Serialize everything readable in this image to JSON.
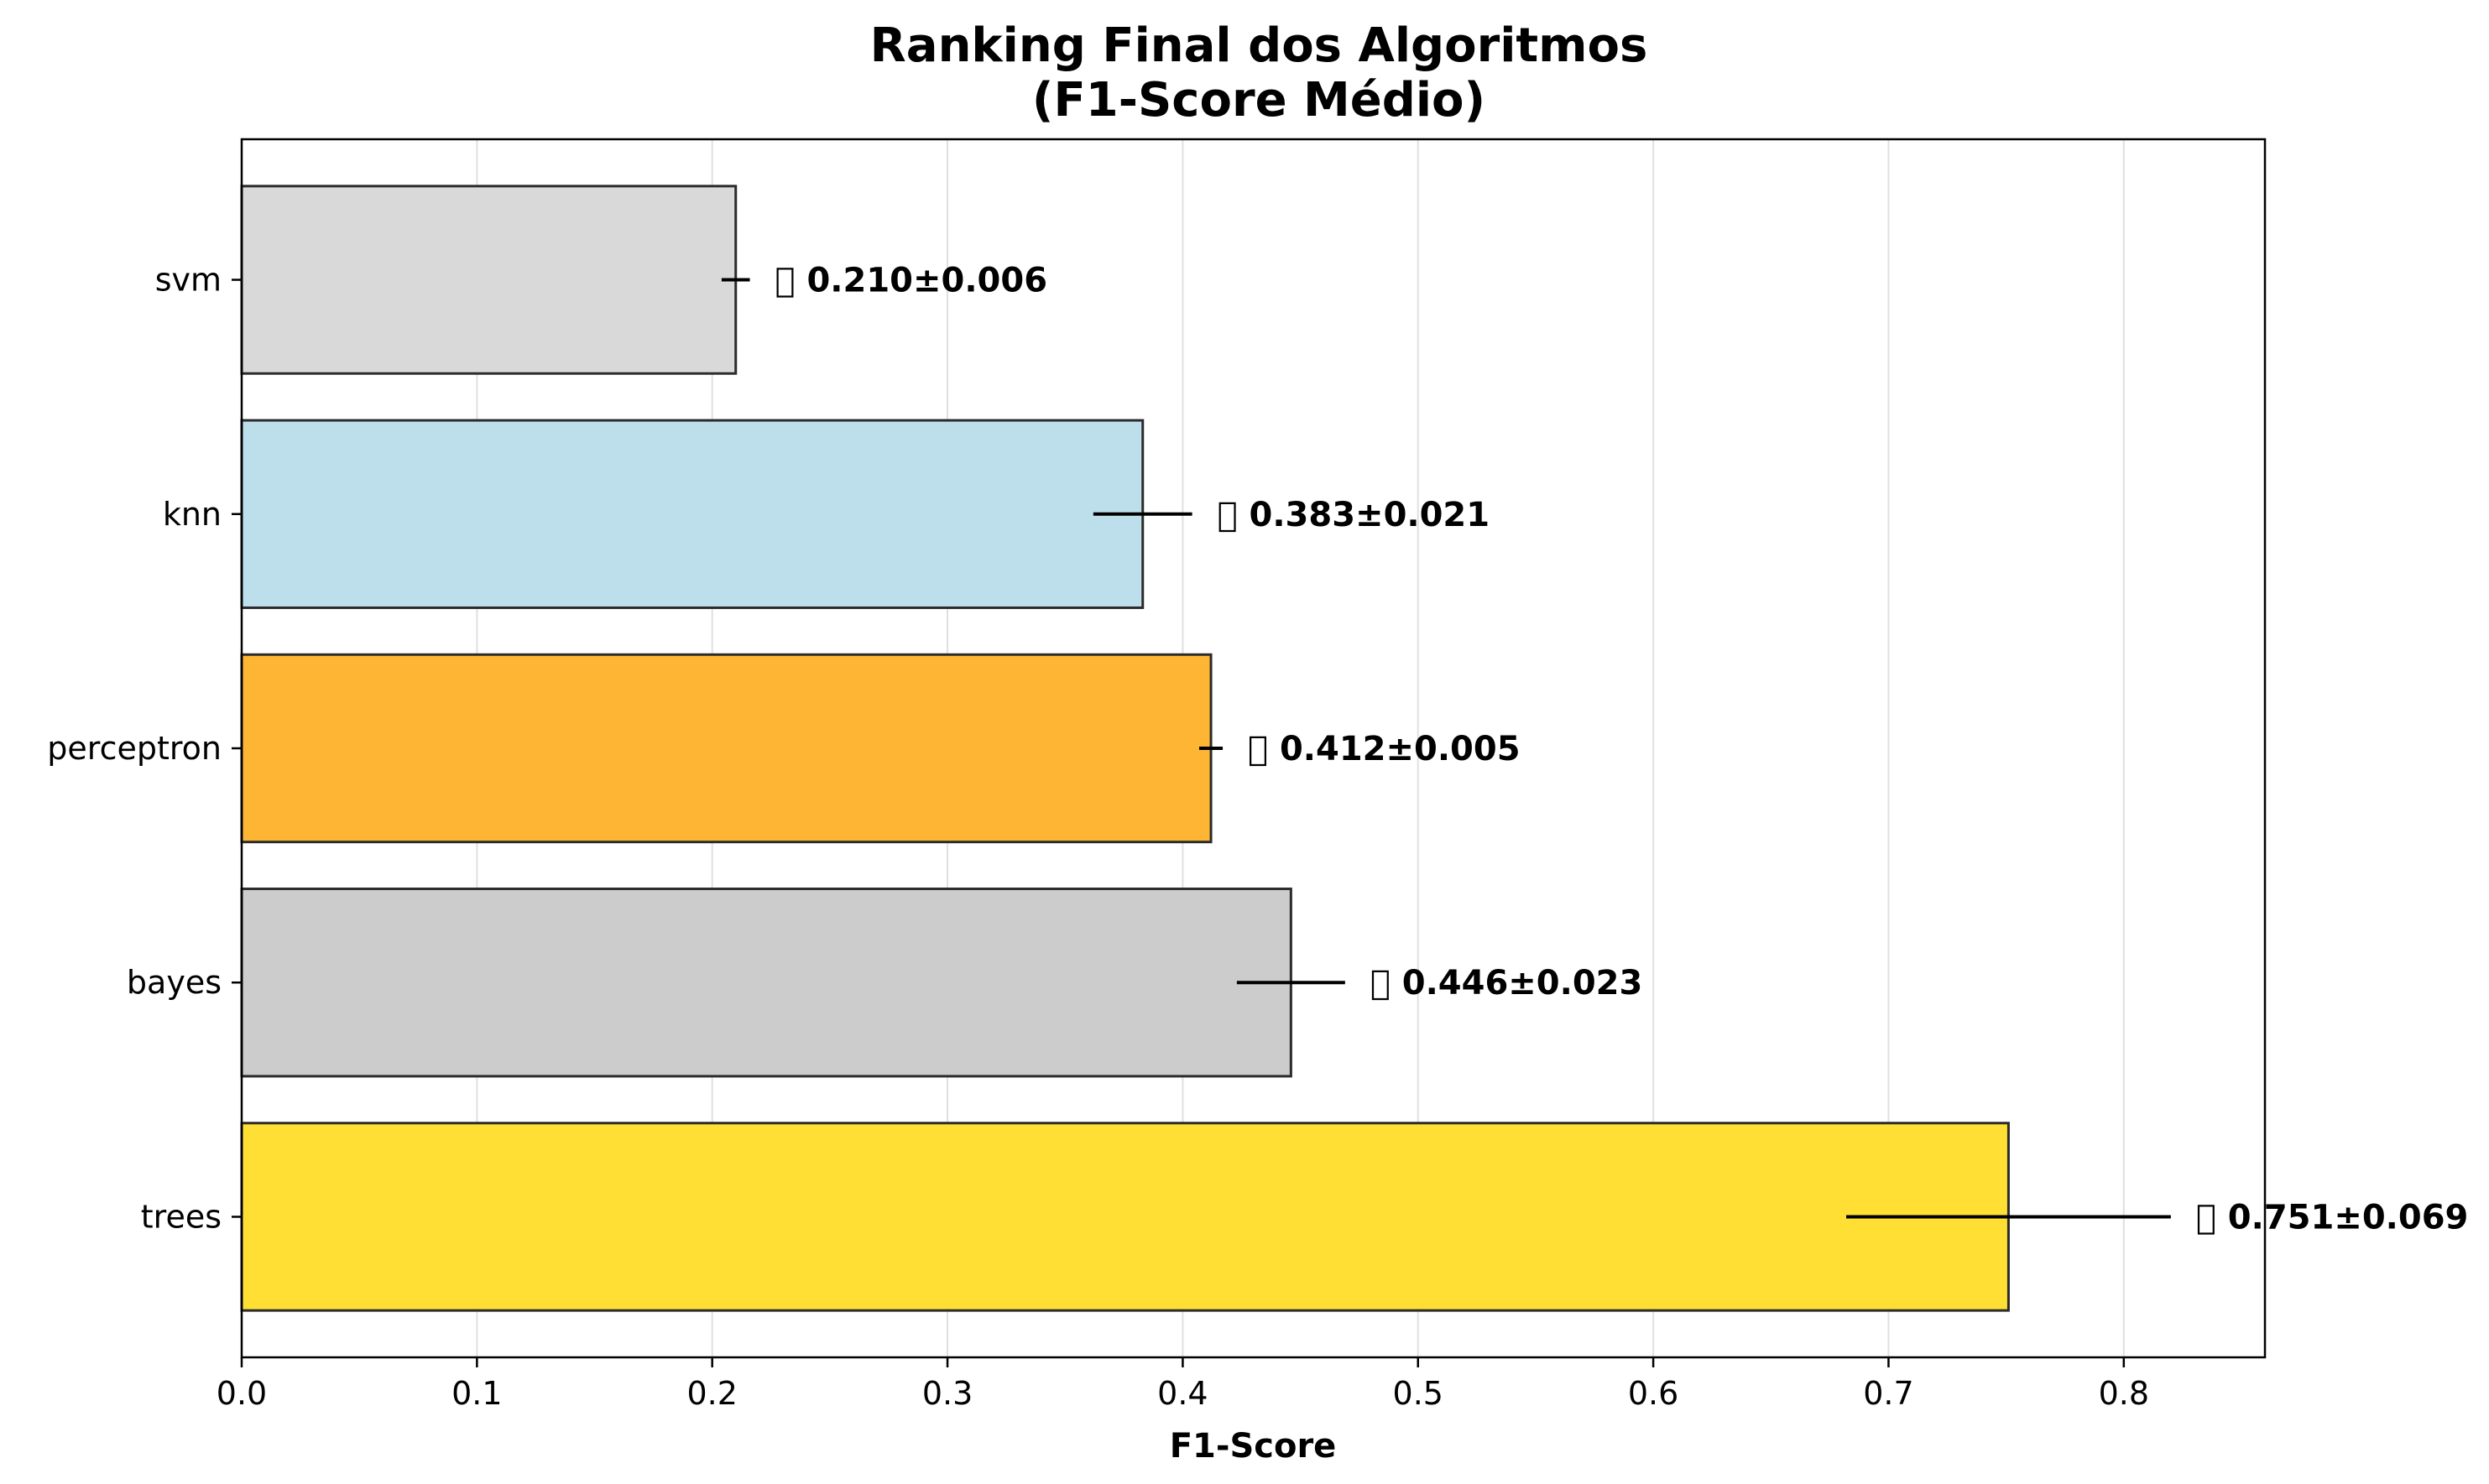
{
  "chart_data": {
    "type": "bar",
    "orientation": "horizontal",
    "title_lines": [
      "Ranking Final dos Algoritmos",
      "(F1-Score Médio)"
    ],
    "xlabel": "F1-Score",
    "ylabel": "",
    "xlim": [
      0,
      0.86
    ],
    "xticks": [
      "0.0",
      "0.1",
      "0.2",
      "0.3",
      "0.4",
      "0.5",
      "0.6",
      "0.7",
      "0.8"
    ],
    "grid": "vertical",
    "categories": [
      "svm",
      "knn",
      "perceptron",
      "bayes",
      "trees"
    ],
    "values": [
      0.21,
      0.383,
      0.412,
      0.446,
      0.751
    ],
    "errors": [
      0.006,
      0.021,
      0.005,
      0.023,
      0.069
    ],
    "labels": [
      "􀀀 0.210±0.006",
      "􀀀 0.383±0.021",
      "􀀀 0.412±0.005",
      "􀀀 0.446±0.023",
      "􀀀 0.751±0.069"
    ],
    "colors": [
      "#d9d9d9",
      "#bddfeb",
      "#feb533",
      "#cccccc",
      "#ffdf33"
    ]
  }
}
